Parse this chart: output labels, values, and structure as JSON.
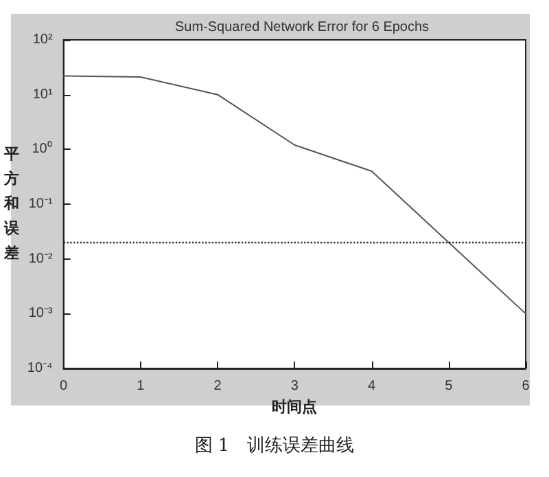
{
  "chart_data": {
    "type": "line",
    "title": "Sum-Squared Network Error for 6 Epochs",
    "xlabel": "时间点",
    "ylabel": "平方和误差",
    "annotations": [
      "图 1　训练误差曲线"
    ],
    "x": [
      0,
      1,
      2,
      3,
      4,
      5,
      6
    ],
    "series": [
      {
        "color": "#555555",
        "values": [
          22,
          21,
          10,
          1.2,
          0.4,
          0.02,
          0.001
        ]
      }
    ],
    "ref_lines": [
      {
        "axis": "y",
        "value": 0.02,
        "color": "#333333",
        "line_style": "dotted"
      }
    ],
    "log": "y",
    "xlim": [
      0,
      6
    ],
    "xticks": [
      0,
      1,
      2,
      3,
      4,
      5,
      6
    ],
    "ylim": [
      0.0001,
      100
    ],
    "yticks": [
      {
        "value": 0.0001,
        "label": "10⁻⁴"
      },
      {
        "value": 0.001,
        "label": "10⁻³"
      },
      {
        "value": 0.01,
        "label": "10⁻²"
      },
      {
        "value": 0.1,
        "label": "10⁻¹"
      },
      {
        "value": 1,
        "label": "10⁰"
      },
      {
        "value": 10,
        "label": "10¹"
      },
      {
        "value": 100,
        "label": "10²"
      }
    ],
    "grid": false,
    "marker": "none",
    "line_style": "solid"
  }
}
